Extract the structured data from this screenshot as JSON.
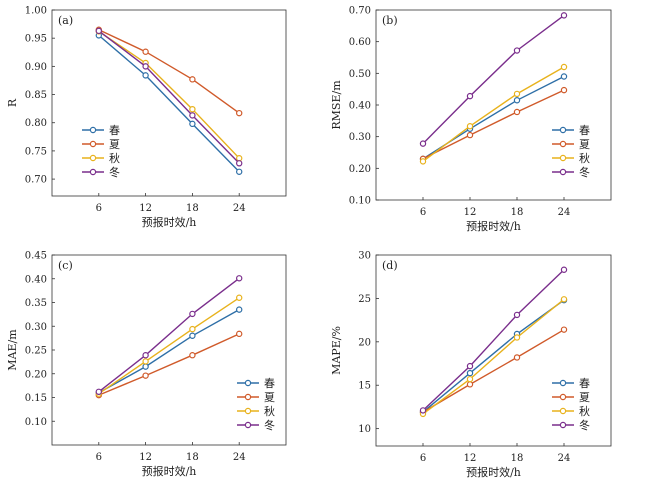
{
  "chart_data": [
    {
      "type": "line",
      "panel_label": "(a)",
      "xlabel": "预报时效/h",
      "ylabel": "R",
      "x": [
        6,
        12,
        18,
        24
      ],
      "xlim": [
        0,
        30
      ],
      "ylim": [
        0.67,
        1.0
      ],
      "yticks": [
        "1.00",
        "0.95",
        "0.90",
        "0.85",
        "0.80",
        "0.75",
        "0.70"
      ],
      "legend_position": "bottom-left",
      "series": [
        {
          "name": "春",
          "color": "#2e6fa7",
          "values": [
            0.955,
            0.884,
            0.798,
            0.713
          ]
        },
        {
          "name": "夏",
          "color": "#d05a2a",
          "values": [
            0.965,
            0.926,
            0.877,
            0.817
          ]
        },
        {
          "name": "秋",
          "color": "#e8b21c",
          "values": [
            0.962,
            0.906,
            0.824,
            0.737
          ]
        },
        {
          "name": "冬",
          "color": "#7a2e8c",
          "values": [
            0.963,
            0.9,
            0.813,
            0.728
          ]
        }
      ]
    },
    {
      "type": "line",
      "panel_label": "(b)",
      "xlabel": "预报时效/h",
      "ylabel": "RMSE/m",
      "x": [
        6,
        12,
        18,
        24
      ],
      "xlim": [
        0,
        30
      ],
      "ylim": [
        0.1,
        0.7
      ],
      "yticks": [
        "0.70",
        "0.60",
        "0.50",
        "0.40",
        "0.30",
        "0.20",
        "0.10"
      ],
      "legend_position": "bottom-right",
      "series": [
        {
          "name": "春",
          "color": "#2e6fa7",
          "values": [
            0.23,
            0.325,
            0.415,
            0.49
          ]
        },
        {
          "name": "夏",
          "color": "#d05a2a",
          "values": [
            0.23,
            0.305,
            0.378,
            0.447
          ]
        },
        {
          "name": "秋",
          "color": "#e8b21c",
          "values": [
            0.222,
            0.333,
            0.435,
            0.52
          ]
        },
        {
          "name": "冬",
          "color": "#7a2e8c",
          "values": [
            0.278,
            0.428,
            0.572,
            0.683
          ]
        }
      ]
    },
    {
      "type": "line",
      "panel_label": "(c)",
      "xlabel": "预报时效/h",
      "ylabel": "MAE/m",
      "x": [
        6,
        12,
        18,
        24
      ],
      "xlim": [
        0,
        30
      ],
      "ylim": [
        0.05,
        0.45
      ],
      "yticks": [
        "0.45",
        "0.40",
        "0.35",
        "0.30",
        "0.25",
        "0.20",
        "0.15",
        "0.10"
      ],
      "legend_position": "bottom-right",
      "series": [
        {
          "name": "春",
          "color": "#2e6fa7",
          "values": [
            0.16,
            0.215,
            0.28,
            0.335
          ]
        },
        {
          "name": "夏",
          "color": "#d05a2a",
          "values": [
            0.155,
            0.196,
            0.239,
            0.284
          ]
        },
        {
          "name": "秋",
          "color": "#e8b21c",
          "values": [
            0.158,
            0.226,
            0.294,
            0.36
          ]
        },
        {
          "name": "冬",
          "color": "#7a2e8c",
          "values": [
            0.162,
            0.239,
            0.326,
            0.401
          ]
        }
      ]
    },
    {
      "type": "line",
      "panel_label": "(d)",
      "xlabel": "预报时效/h",
      "ylabel": "MAPE/%",
      "x": [
        6,
        12,
        18,
        24
      ],
      "xlim": [
        0,
        30
      ],
      "ylim": [
        8,
        30
      ],
      "yticks": [
        "30",
        "25",
        "20",
        "15",
        "10"
      ],
      "legend_position": "bottom-right",
      "series": [
        {
          "name": "春",
          "color": "#2e6fa7",
          "values": [
            11.9,
            16.4,
            20.9,
            24.8
          ]
        },
        {
          "name": "夏",
          "color": "#d05a2a",
          "values": [
            11.9,
            15.1,
            18.2,
            21.4
          ]
        },
        {
          "name": "秋",
          "color": "#e8b21c",
          "values": [
            11.7,
            15.7,
            20.5,
            24.9
          ]
        },
        {
          "name": "冬",
          "color": "#7a2e8c",
          "values": [
            12.1,
            17.2,
            23.1,
            28.3
          ]
        }
      ]
    }
  ]
}
